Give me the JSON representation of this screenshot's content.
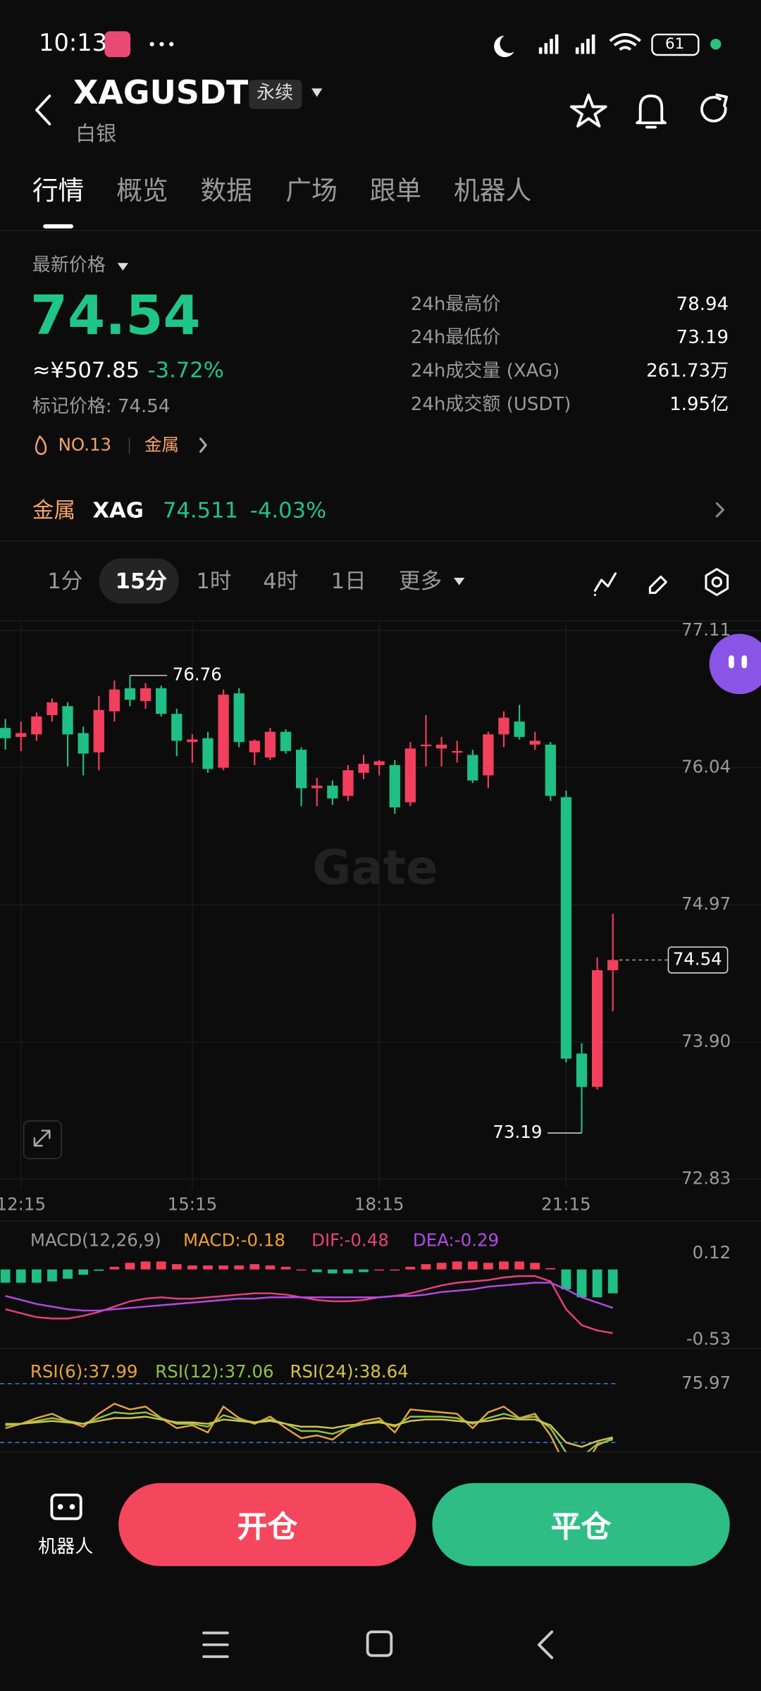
{
  "status_bar": {
    "time": "10:13",
    "battery": "61"
  },
  "header": {
    "symbol": "XAGUSDT",
    "contract": "永续",
    "name": "白银"
  },
  "tabs": [
    "行情",
    "概览",
    "数据",
    "广场",
    "跟单",
    "机器人"
  ],
  "price": {
    "label": "最新价格",
    "last": "74.54",
    "cny": "≈¥507.85",
    "change": "-3.72%",
    "mark": "标记价格: 74.54",
    "rank": "NO.13",
    "sector": "金属"
  },
  "stats": [
    [
      "24h最高价",
      "78.94"
    ],
    [
      "24h最低价",
      "73.19"
    ],
    [
      "24h成交量 (XAG)",
      "261.73万"
    ],
    [
      "24h成交额 (USDT)",
      "1.95亿"
    ]
  ],
  "index": {
    "sector": "金属",
    "symbol": "XAG",
    "price": "74.511",
    "change": "-4.03%"
  },
  "intervals": [
    "1分",
    "15分",
    "1时",
    "4时",
    "1日",
    "更多"
  ],
  "watermark": "Gate",
  "chart_data": [
    {
      "type": "candlestick",
      "x": [
        null,
        "12:15",
        null,
        null,
        null,
        null,
        null,
        null,
        null,
        null,
        null,
        null,
        "15:15",
        null,
        null,
        null,
        null,
        null,
        null,
        null,
        null,
        null,
        null,
        null,
        "18:15",
        null,
        null,
        null,
        null,
        null,
        null,
        null,
        null,
        null,
        null,
        null,
        "21:15",
        null,
        null,
        null
      ],
      "open": [
        76.35,
        76.28,
        76.3,
        76.45,
        76.52,
        76.31,
        76.16,
        76.48,
        76.66,
        76.56,
        76.66,
        76.46,
        76.24,
        76.27,
        76.04,
        76.62,
        76.16,
        76.12,
        76.32,
        76.18,
        75.88,
        75.9,
        75.82,
        76.0,
        76.06,
        76.06,
        75.77,
        76.21,
        76.19,
        76.16,
        76.14,
        75.98,
        76.3,
        76.4,
        76.22,
        76.22,
        75.81,
        73.81,
        73.55,
        74.46
      ],
      "high": [
        76.42,
        76.4,
        76.47,
        76.58,
        76.55,
        76.36,
        76.6,
        76.72,
        76.76,
        76.7,
        76.68,
        76.5,
        76.3,
        76.32,
        76.65,
        76.66,
        76.26,
        76.35,
        76.34,
        76.2,
        75.96,
        75.94,
        76.06,
        76.14,
        76.1,
        76.1,
        76.24,
        76.45,
        76.28,
        76.25,
        76.18,
        76.32,
        76.48,
        76.53,
        76.32,
        76.24,
        75.86,
        73.89,
        74.56,
        74.9
      ],
      "low": [
        76.18,
        76.17,
        76.25,
        76.4,
        76.05,
        75.98,
        76.02,
        76.4,
        76.52,
        76.5,
        76.44,
        76.13,
        76.08,
        76.0,
        76.02,
        76.2,
        76.06,
        76.1,
        76.15,
        75.74,
        75.74,
        75.75,
        75.78,
        75.95,
        75.98,
        75.68,
        75.74,
        76.05,
        76.05,
        76.08,
        75.92,
        75.88,
        76.2,
        76.26,
        76.18,
        75.78,
        73.74,
        73.19,
        73.53,
        74.14
      ],
      "close": [
        76.27,
        76.31,
        76.44,
        76.55,
        76.3,
        76.15,
        76.49,
        76.65,
        76.57,
        76.66,
        76.46,
        76.25,
        76.26,
        76.03,
        76.61,
        76.24,
        76.25,
        76.32,
        76.17,
        75.88,
        75.9,
        75.8,
        76.02,
        76.07,
        76.09,
        75.73,
        76.19,
        76.22,
        76.22,
        76.17,
        75.94,
        76.3,
        76.43,
        76.28,
        76.25,
        75.82,
        73.77,
        73.55,
        74.46,
        74.54
      ],
      "up_color": "#f23f5d",
      "down_color": "#1fbf85",
      "ylim": [
        72.83,
        77.11
      ],
      "yticks": [
        77.11,
        76.04,
        74.97,
        {
          "value": 73.9,
          "label": "73.90"
        },
        72.83
      ],
      "grid": true
    },
    {
      "type": "macd",
      "title": "MACD(12,26,9)",
      "histogram": {
        "name": "MACD:-0.18",
        "color": "#f0a030",
        "values": [
          -0.1,
          -0.1,
          -0.1,
          -0.09,
          -0.07,
          -0.04,
          -0.01,
          0.02,
          0.05,
          0.06,
          0.06,
          0.04,
          0.03,
          0.03,
          0.03,
          0.03,
          0.04,
          0.03,
          0.02,
          0.0,
          -0.02,
          -0.03,
          -0.03,
          -0.02,
          0.0,
          0.0,
          0.02,
          0.04,
          0.05,
          0.06,
          0.06,
          0.05,
          0.06,
          0.06,
          0.05,
          0.01,
          -0.15,
          -0.21,
          -0.21,
          -0.18
        ]
      },
      "series": [
        {
          "name": "DIF:-0.48",
          "color": "#e8407f",
          "values": [
            -0.3,
            -0.33,
            -0.36,
            -0.37,
            -0.37,
            -0.35,
            -0.32,
            -0.28,
            -0.24,
            -0.22,
            -0.21,
            -0.22,
            -0.22,
            -0.21,
            -0.2,
            -0.19,
            -0.18,
            -0.18,
            -0.19,
            -0.21,
            -0.23,
            -0.24,
            -0.24,
            -0.23,
            -0.21,
            -0.2,
            -0.18,
            -0.15,
            -0.12,
            -0.1,
            -0.09,
            -0.08,
            -0.06,
            -0.05,
            -0.05,
            -0.09,
            -0.3,
            -0.42,
            -0.46,
            -0.48
          ]
        },
        {
          "name": "DEA:-0.29",
          "color": "#b24be6",
          "values": [
            -0.2,
            -0.23,
            -0.26,
            -0.28,
            -0.3,
            -0.31,
            -0.31,
            -0.3,
            -0.29,
            -0.28,
            -0.27,
            -0.26,
            -0.25,
            -0.24,
            -0.23,
            -0.22,
            -0.22,
            -0.21,
            -0.21,
            -0.21,
            -0.21,
            -0.21,
            -0.21,
            -0.21,
            -0.21,
            -0.2,
            -0.2,
            -0.19,
            -0.17,
            -0.16,
            -0.15,
            -0.13,
            -0.12,
            -0.11,
            -0.1,
            -0.1,
            -0.15,
            -0.21,
            -0.25,
            -0.29
          ]
        }
      ],
      "up_color": "#f23f5d",
      "down_color": "#1fbf85",
      "ylim": [
        -0.53,
        0.12
      ],
      "yticks": [
        0.12,
        -0.53
      ]
    },
    {
      "type": "line",
      "series": [
        {
          "name": "RSI(6):37.99",
          "color": "#e8a33d",
          "values": [
            45,
            48,
            52,
            55,
            50,
            46,
            55,
            62,
            58,
            60,
            52,
            45,
            47,
            42,
            60,
            52,
            48,
            53,
            45,
            38,
            40,
            37,
            45,
            50,
            52,
            42,
            58,
            57,
            56,
            55,
            45,
            56,
            60,
            52,
            55,
            40,
            18,
            15,
            33,
            37.99
          ]
        },
        {
          "name": "RSI(12):37.06",
          "color": "#8bc34a",
          "values": [
            47,
            48,
            50,
            52,
            50,
            48,
            52,
            56,
            55,
            56,
            52,
            48,
            48,
            46,
            54,
            51,
            49,
            51,
            48,
            43,
            43,
            41,
            45,
            48,
            50,
            46,
            53,
            53,
            53,
            52,
            48,
            52,
            55,
            52,
            53,
            45,
            28,
            25,
            34,
            37.06
          ]
        },
        {
          "name": "RSI(24):38.64",
          "color": "#d4c24a",
          "values": [
            48,
            48,
            49,
            50,
            49,
            48,
            50,
            52,
            52,
            53,
            51,
            49,
            49,
            48,
            51,
            50,
            49,
            50,
            48,
            46,
            46,
            45,
            47,
            48,
            49,
            47,
            50,
            51,
            51,
            50,
            49,
            50,
            52,
            51,
            51,
            47,
            35,
            32,
            36,
            38.64
          ]
        }
      ],
      "ylim": [
        30,
        90
      ],
      "yticks": [
        75.97
      ],
      "levels": [
        35
      ],
      "level_color": "#3a78d8"
    }
  ],
  "actions": {
    "robot": "机器人",
    "open": "开仓",
    "close": "平仓"
  }
}
